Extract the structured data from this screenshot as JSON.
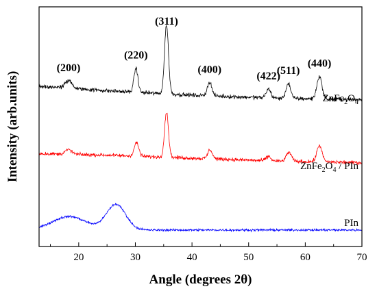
{
  "chart_data": {
    "type": "line",
    "xlabel": "Angle (degrees 2θ)",
    "ylabel": "Intensity (arb.units)",
    "xlim": [
      13,
      70
    ],
    "xticks": [
      20,
      30,
      40,
      50,
      60,
      70
    ],
    "y_ticks_labeled": false,
    "grid": false,
    "legend": "none",
    "peak_labels": [
      {
        "label": "(200)",
        "x": 18.2
      },
      {
        "label": "(220)",
        "x": 30.1
      },
      {
        "label": "(311)",
        "x": 35.5
      },
      {
        "label": "(400)",
        "x": 43.1
      },
      {
        "label": "(422)",
        "x": 53.5
      },
      {
        "label": "(511)",
        "x": 57.0
      },
      {
        "label": "(440)",
        "x": 62.5
      }
    ],
    "series": [
      {
        "label_parts": [
          "ZnFe",
          "2",
          "O",
          "4"
        ],
        "color": "#000000",
        "offset": 95,
        "baseline": [
          [
            13,
            12
          ],
          [
            25,
            9
          ],
          [
            40,
            6
          ],
          [
            55,
            4
          ],
          [
            70,
            3
          ]
        ],
        "peaks": [
          [
            18.2,
            5,
            0.6
          ],
          [
            30.1,
            16,
            0.35
          ],
          [
            35.5,
            46,
            0.35
          ],
          [
            43.1,
            9,
            0.4
          ],
          [
            53.5,
            6,
            0.4
          ],
          [
            57.0,
            10,
            0.4
          ],
          [
            62.5,
            15,
            0.45
          ]
        ],
        "noise": 2.0
      },
      {
        "label_parts": [
          "ZnFe",
          "2",
          "O",
          "4",
          " / PIn"
        ],
        "color": "#ff0000",
        "offset": 54,
        "baseline": [
          [
            13,
            8
          ],
          [
            25,
            7
          ],
          [
            40,
            5
          ],
          [
            55,
            3
          ],
          [
            70,
            2
          ]
        ],
        "peaks": [
          [
            18.2,
            3,
            0.6
          ],
          [
            30.2,
            9,
            0.4
          ],
          [
            35.5,
            30,
            0.35
          ],
          [
            43.2,
            6,
            0.4
          ],
          [
            53.5,
            3,
            0.4
          ],
          [
            57.1,
            6,
            0.45
          ],
          [
            62.5,
            11,
            0.45
          ]
        ],
        "noise": 1.8
      },
      {
        "label_parts": [
          "PIn"
        ],
        "color": "#0000ff",
        "offset": 10,
        "baseline": [
          [
            13,
            1
          ],
          [
            70,
            1
          ]
        ],
        "peaks": [
          [
            18.3,
            9,
            3.0
          ],
          [
            26.6,
            17,
            1.7
          ]
        ],
        "noise": 1.1
      }
    ]
  }
}
